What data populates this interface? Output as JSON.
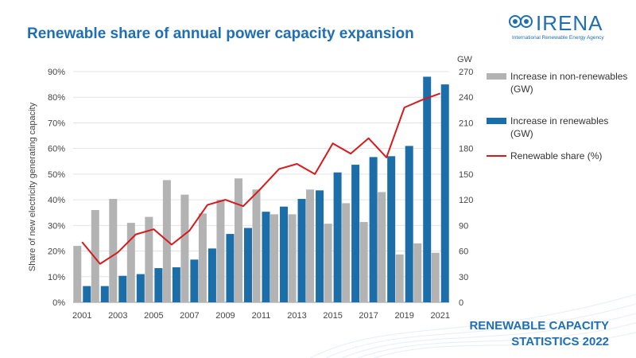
{
  "header": {
    "title": "Renewable share of annual power capacity expansion",
    "logo_name": "IRENA",
    "logo_subtitle": "International Renewable Energy Agency"
  },
  "footer": {
    "line1": "RENEWABLE CAPACITY",
    "line2": "STATISTICS 2022"
  },
  "colors": {
    "accent": "#1f6fb2",
    "renewables_bar": "#1b6ea8",
    "non_renewables_bar": "#b3b3b3",
    "share_line": "#d7191c"
  },
  "chart_data": {
    "type": "bar",
    "title": "Renewable share of annual power capacity expansion",
    "ylabel": "Share of new electricity generating capacity",
    "y2label": "GW",
    "ylim": [
      0,
      90
    ],
    "y2lim": [
      0,
      270
    ],
    "yticks": [
      "0%",
      "10%",
      "20%",
      "30%",
      "40%",
      "50%",
      "60%",
      "70%",
      "80%",
      "90%"
    ],
    "y2ticks": [
      "0",
      "30",
      "60",
      "90",
      "120",
      "150",
      "180",
      "210",
      "240",
      "270"
    ],
    "xtick_labels": [
      "2001",
      "2003",
      "2005",
      "2007",
      "2009",
      "2011",
      "2013",
      "2015",
      "2017",
      "2019",
      "2021"
    ],
    "categories": [
      "2001",
      "2002",
      "2003",
      "2004",
      "2005",
      "2006",
      "2007",
      "2008",
      "2009",
      "2010",
      "2011",
      "2012",
      "2013",
      "2014",
      "2015",
      "2016",
      "2017",
      "2018",
      "2019",
      "2020",
      "2021"
    ],
    "grid": true,
    "legend_placement": "right",
    "series": [
      {
        "name": "Increase in non-renewables (GW)",
        "axis": "right",
        "type": "bar",
        "values": [
          66,
          108,
          121,
          93,
          100,
          143,
          126,
          104,
          120,
          145,
          132,
          103,
          103,
          132,
          92,
          116,
          94,
          129,
          56,
          69,
          58
        ]
      },
      {
        "name": "Increase in renewables (GW)",
        "axis": "right",
        "type": "bar",
        "values": [
          19,
          19,
          31,
          33,
          40,
          41,
          50,
          63,
          80,
          87,
          106,
          112,
          121,
          131,
          152,
          161,
          170,
          171,
          183,
          264,
          255
        ]
      },
      {
        "name": "Renewable share (%)",
        "axis": "left",
        "type": "line",
        "values": [
          23.5,
          15,
          19.5,
          26.5,
          28.5,
          22.5,
          28,
          38,
          40,
          37.5,
          44.5,
          52,
          54,
          50,
          62,
          58,
          64,
          56.5,
          76,
          79,
          81.5
        ]
      }
    ]
  }
}
